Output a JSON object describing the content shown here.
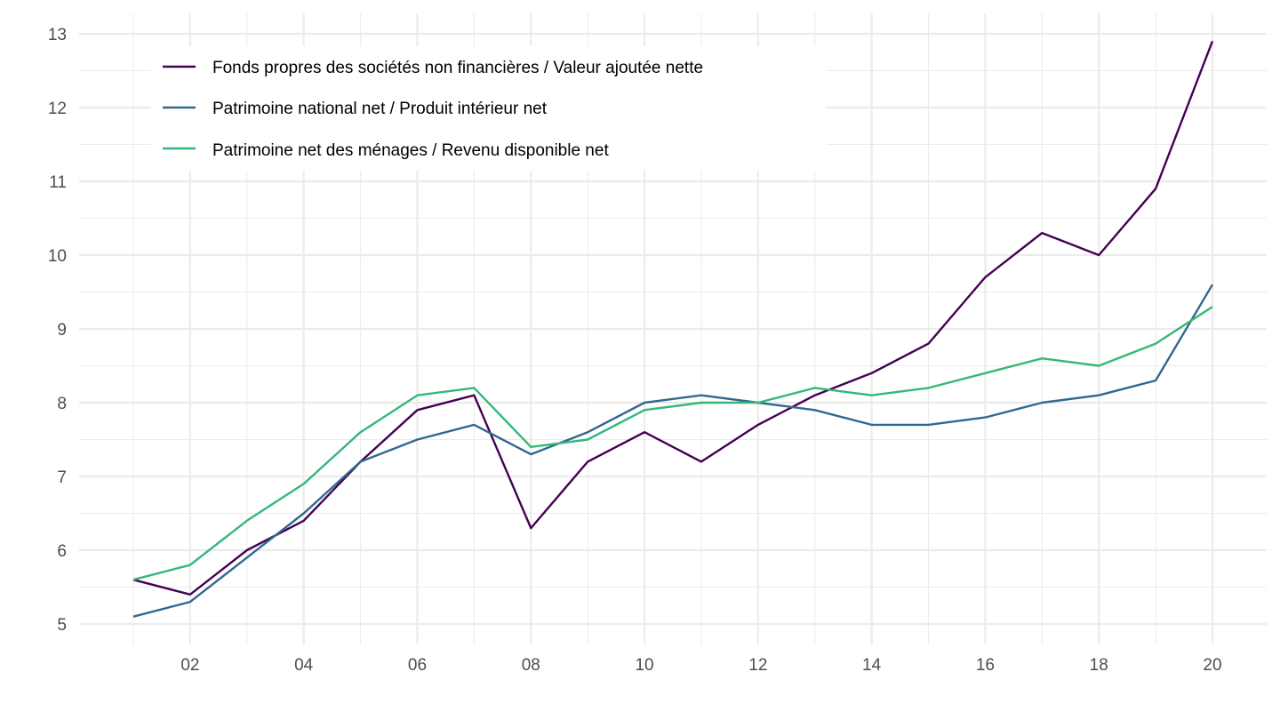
{
  "chart_data": {
    "type": "line",
    "title": "",
    "xlabel": "",
    "ylabel": "",
    "x": [
      2001,
      2002,
      2003,
      2004,
      2005,
      2006,
      2007,
      2008,
      2009,
      2010,
      2011,
      2012,
      2013,
      2014,
      2015,
      2016,
      2017,
      2018,
      2019,
      2020
    ],
    "xlim": [
      2000.05,
      2020.95
    ],
    "ylim": [
      4.7,
      13.3
    ],
    "x_ticks": [
      2002,
      2004,
      2006,
      2008,
      2010,
      2012,
      2014,
      2016,
      2018,
      2020
    ],
    "x_tick_labels": [
      "02",
      "04",
      "06",
      "08",
      "10",
      "12",
      "14",
      "16",
      "18",
      "20"
    ],
    "y_ticks": [
      5,
      6,
      7,
      8,
      9,
      10,
      11,
      12,
      13
    ],
    "y_tick_labels": [
      "5",
      "6",
      "7",
      "8",
      "9",
      "10",
      "11",
      "12",
      "13"
    ],
    "grid": true,
    "legend_position": "top-left",
    "series": [
      {
        "name": "Fonds propres des sociétés non financières / Valeur ajoutée nette",
        "color": "#440154",
        "values": [
          5.6,
          5.4,
          6.0,
          6.4,
          7.2,
          7.9,
          8.1,
          6.3,
          7.2,
          7.6,
          7.2,
          7.7,
          8.1,
          8.4,
          8.8,
          9.7,
          10.3,
          10.0,
          10.9,
          12.9
        ]
      },
      {
        "name": "Patrimoine national net / Produit intérieur net",
        "color": "#31688e",
        "values": [
          5.1,
          5.3,
          5.9,
          6.5,
          7.2,
          7.5,
          7.7,
          7.3,
          7.6,
          8.0,
          8.1,
          8.0,
          7.9,
          7.7,
          7.7,
          7.8,
          8.0,
          8.1,
          8.3,
          9.6
        ]
      },
      {
        "name": "Patrimoine net des ménages / Revenu disponible net",
        "color": "#35b779",
        "values": [
          5.6,
          5.8,
          6.4,
          6.9,
          7.6,
          8.1,
          8.2,
          7.4,
          7.5,
          7.9,
          8.0,
          8.0,
          8.2,
          8.1,
          8.2,
          8.4,
          8.6,
          8.5,
          8.8,
          9.3
        ]
      }
    ]
  }
}
